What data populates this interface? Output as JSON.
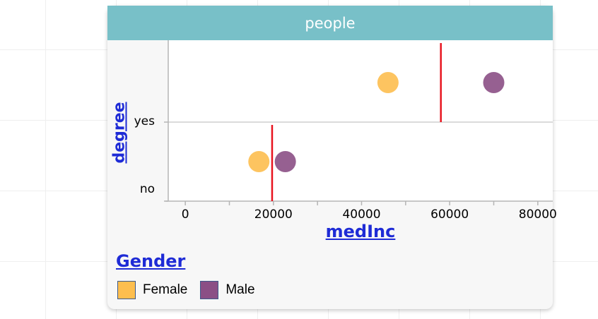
{
  "card": {
    "title": "people"
  },
  "legend": {
    "title": "Gender",
    "items": [
      {
        "label": "Female",
        "color": "#fdbe4f"
      },
      {
        "label": "Male",
        "color": "#8b4f85"
      }
    ]
  },
  "chart_data": {
    "type": "scatter",
    "xlabel": "medInc",
    "ylabel": "degree",
    "xlim": [
      -5000,
      85000
    ],
    "x_ticks": [
      0,
      20000,
      40000,
      60000,
      80000
    ],
    "x_tick_labels": [
      "0",
      "20000",
      "40000",
      "60000",
      "80000"
    ],
    "categories": [
      "no",
      "yes"
    ],
    "series": [
      {
        "name": "Female",
        "color": "#fdbe4f",
        "points": [
          {
            "x": 16700,
            "y": "no"
          },
          {
            "x": 46000,
            "y": "yes"
          }
        ]
      },
      {
        "name": "Male",
        "color": "#8b4f85",
        "points": [
          {
            "x": 22700,
            "y": "no"
          },
          {
            "x": 70000,
            "y": "yes"
          }
        ]
      }
    ],
    "reference_lines": [
      {
        "category": "no",
        "x": 19700,
        "color": "#e8141f"
      },
      {
        "category": "yes",
        "x": 58000,
        "color": "#e8141f"
      }
    ],
    "grid": true
  }
}
